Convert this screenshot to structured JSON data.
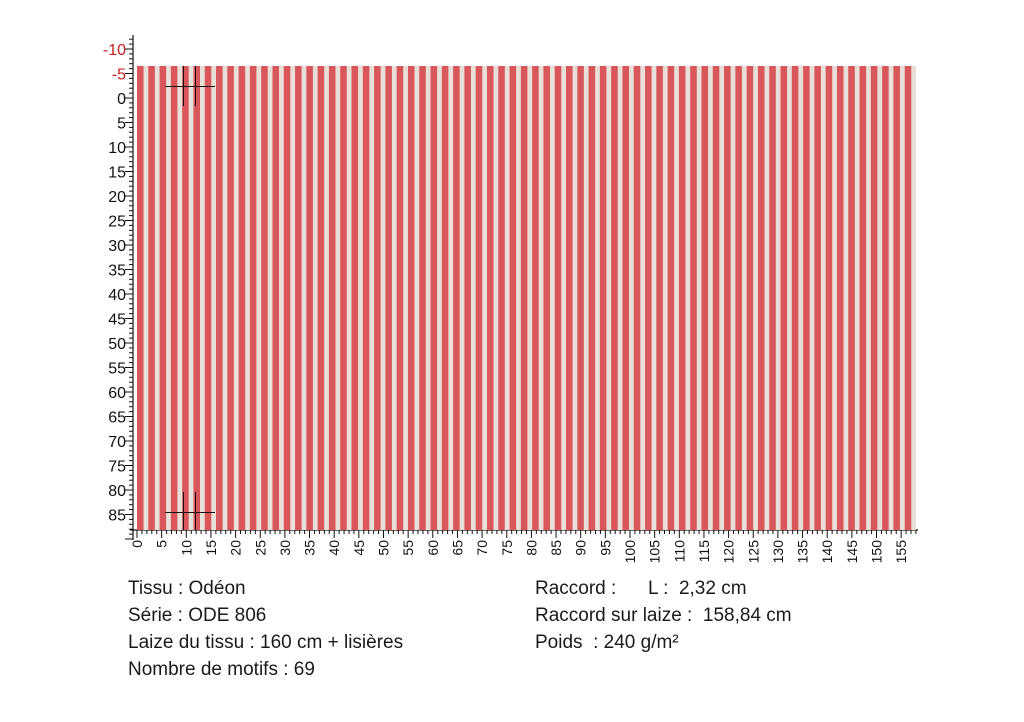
{
  "fabric": {
    "stripe_colors": {
      "red": "#d9575b",
      "cream": "#e8dfd8"
    },
    "stripe_count": 69
  },
  "ruler": {
    "vertical_labels": [
      "-10",
      "-5",
      "0",
      "5",
      "10",
      "15",
      "20",
      "25",
      "30",
      "35",
      "40",
      "45",
      "50",
      "55",
      "60",
      "65",
      "70",
      "75",
      "80",
      "85"
    ],
    "negative_label_color": "#cc1f1f",
    "horizontal_labels": [
      "0",
      "5",
      "10",
      "15",
      "20",
      "25",
      "30",
      "35",
      "40",
      "45",
      "50",
      "55",
      "60",
      "65",
      "70",
      "75",
      "80",
      "85",
      "90",
      "95",
      "100",
      "105",
      "110",
      "115",
      "120",
      "125",
      "130",
      "135",
      "140",
      "145",
      "150",
      "155"
    ]
  },
  "info": {
    "tissu": "Tissu : Odéon",
    "serie": "Série : ODE 806",
    "laize": "Laize du tissu : 160 cm + lisières",
    "motifs": "Nombre de motifs : 69",
    "raccord": "Raccord :      L :  2,32 cm",
    "raccord_laize": "Raccord sur laize :  158,84 cm",
    "poids": "Poids  : 240 g/m²"
  }
}
